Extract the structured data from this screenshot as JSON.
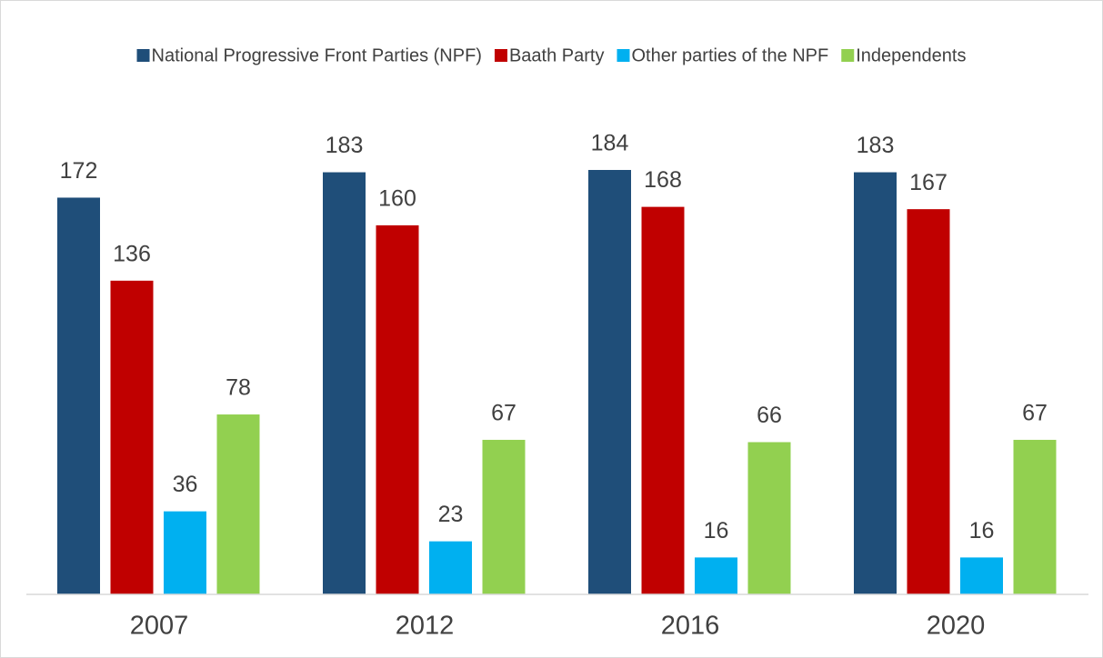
{
  "chart_data": {
    "type": "bar",
    "categories": [
      "2007",
      "2012",
      "2016",
      "2020"
    ],
    "series": [
      {
        "name": "National Progressive Front Parties (NPF)",
        "color": "#1f4e79",
        "values": [
          172,
          183,
          184,
          183
        ]
      },
      {
        "name": "Baath Party",
        "color": "#c00000",
        "values": [
          136,
          160,
          168,
          167
        ]
      },
      {
        "name": "Other parties of the NPF",
        "color": "#00b0f0",
        "values": [
          36,
          23,
          16,
          16
        ]
      },
      {
        "name": "Independents",
        "color": "#92d050",
        "values": [
          78,
          67,
          66,
          67
        ]
      }
    ],
    "legend": "top"
  }
}
